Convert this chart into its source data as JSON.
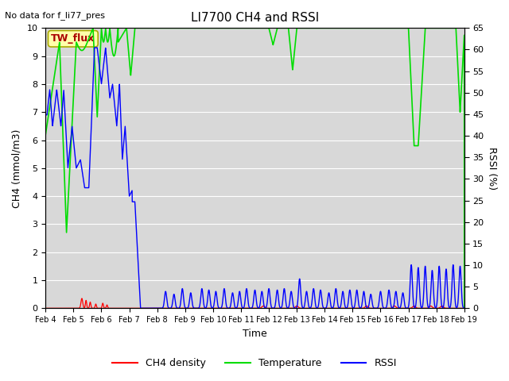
{
  "title": "LI7700 CH4 and RSSI",
  "top_left_note": "No data for f_li77_pres",
  "annotation_box": "TW_flux",
  "xlabel": "Time",
  "ylabel_left": "CH4 (mmol/m3)",
  "ylabel_right": "RSSI (%)",
  "xlim_days": [
    0,
    15
  ],
  "ylim_left": [
    0,
    10.0
  ],
  "ylim_right": [
    0,
    65
  ],
  "xtick_positions": [
    0,
    1,
    2,
    3,
    4,
    5,
    6,
    7,
    8,
    9,
    10,
    11,
    12,
    13,
    14,
    15
  ],
  "xtick_labels": [
    "Feb 4",
    "Feb 5",
    "Feb 6",
    "Feb 7",
    "Feb 8",
    "Feb 9",
    "Feb 10",
    "Feb 11",
    "Feb 12",
    "Feb 13",
    "Feb 14",
    "Feb 15",
    "Feb 16",
    "Feb 17",
    "Feb 18",
    "Feb 19"
  ],
  "ytick_left": [
    0.0,
    1.0,
    2.0,
    3.0,
    4.0,
    5.0,
    6.0,
    7.0,
    8.0,
    9.0,
    10.0
  ],
  "ytick_right": [
    0,
    5,
    10,
    15,
    20,
    25,
    30,
    35,
    40,
    45,
    50,
    55,
    60,
    65
  ],
  "color_ch4": "#ff0000",
  "color_temp": "#00dd00",
  "color_rssi": "#0000ff",
  "bg_color": "#d8d8d8",
  "legend_labels": [
    "CH4 density",
    "Temperature",
    "RSSI"
  ],
  "annotation_color": "#aa0000",
  "annotation_bg": "#ffffaa",
  "annotation_border": "#aaaa00",
  "figsize": [
    6.4,
    4.8
  ],
  "dpi": 100
}
